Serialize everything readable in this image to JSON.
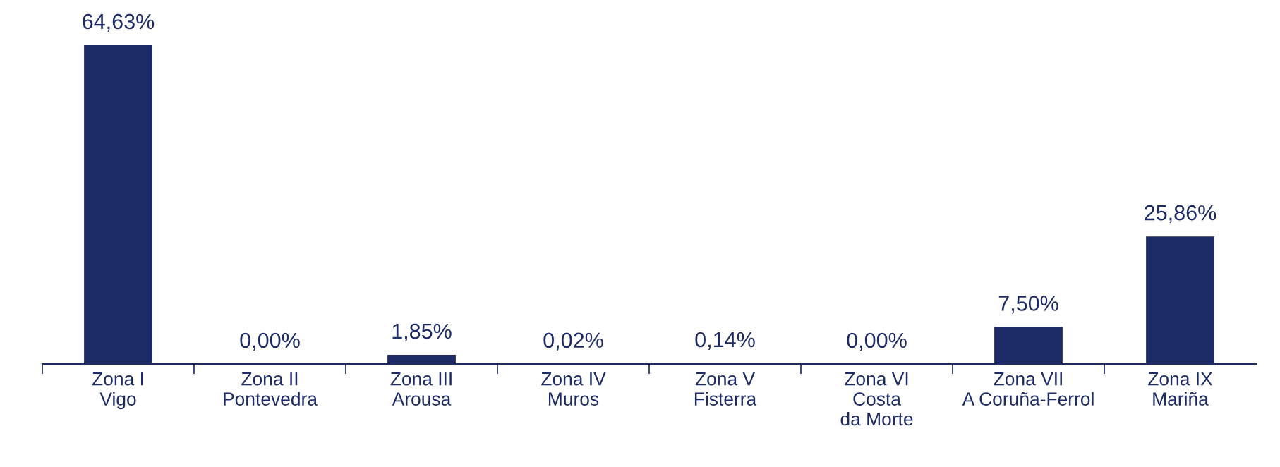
{
  "chart_data": {
    "type": "bar",
    "categories": [
      "Zona I\nVigo",
      "Zona II\nPontevedra",
      "Zona III\nArousa",
      "Zona IV\nMuros",
      "Zona V\nFisterra",
      "Zona VI\nCosta\nda Morte",
      "Zona VII\nA Coruña-Ferrol",
      "Zona IX\nMariña"
    ],
    "values": [
      64.63,
      0.0,
      1.85,
      0.02,
      0.14,
      0.0,
      7.5,
      25.86
    ],
    "value_labels": [
      "64,63%",
      "0,00%",
      "1,85%",
      "0,02%",
      "0,14%",
      "0,00%",
      "7,50%",
      "25,86%"
    ],
    "color": "#1c2a66",
    "grid": false,
    "legend": false
  }
}
